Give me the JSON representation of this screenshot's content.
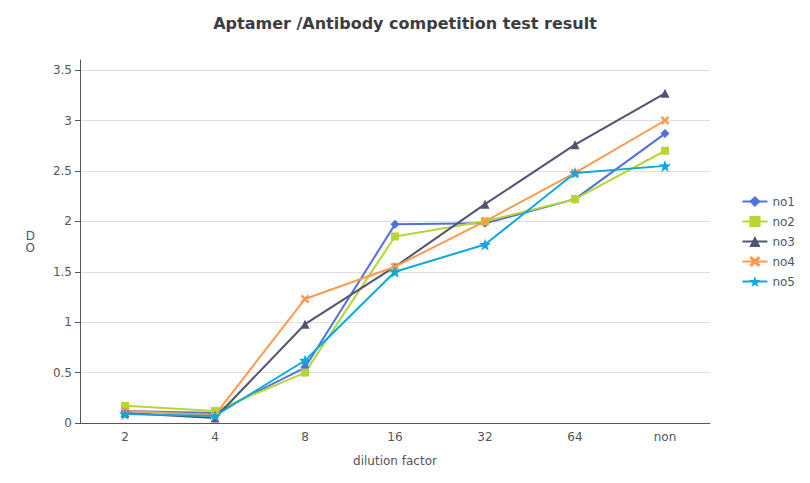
{
  "chart_data": {
    "type": "line",
    "title": "Aptamer /Antibody competition test result",
    "xlabel": "dilution factor",
    "ylabel": "D\nO",
    "categories": [
      "2",
      "4",
      "8",
      "16",
      "32",
      "64",
      "non"
    ],
    "series": [
      {
        "name": "no1",
        "values": [
          0.12,
          0.1,
          0.55,
          1.97,
          1.98,
          2.22,
          2.87
        ],
        "marker": "diamond"
      },
      {
        "name": "no2",
        "values": [
          0.17,
          0.12,
          0.5,
          1.85,
          2.0,
          2.22,
          2.7
        ],
        "marker": "square"
      },
      {
        "name": "no3",
        "values": [
          0.1,
          0.05,
          0.98,
          1.55,
          2.17,
          2.76,
          3.27
        ],
        "marker": "triangle"
      },
      {
        "name": "no4",
        "values": [
          0.12,
          0.08,
          1.23,
          1.55,
          2.0,
          2.48,
          3.0
        ],
        "marker": "x"
      },
      {
        "name": "no5",
        "values": [
          0.09,
          0.07,
          0.62,
          1.5,
          1.77,
          2.48,
          2.55
        ],
        "marker": "star"
      }
    ],
    "ylim": [
      0,
      3.6
    ],
    "yticks": [
      0,
      0.5,
      1.0,
      1.5,
      2.0,
      2.5,
      3.0,
      3.5
    ],
    "grid": true,
    "legend": "right"
  }
}
